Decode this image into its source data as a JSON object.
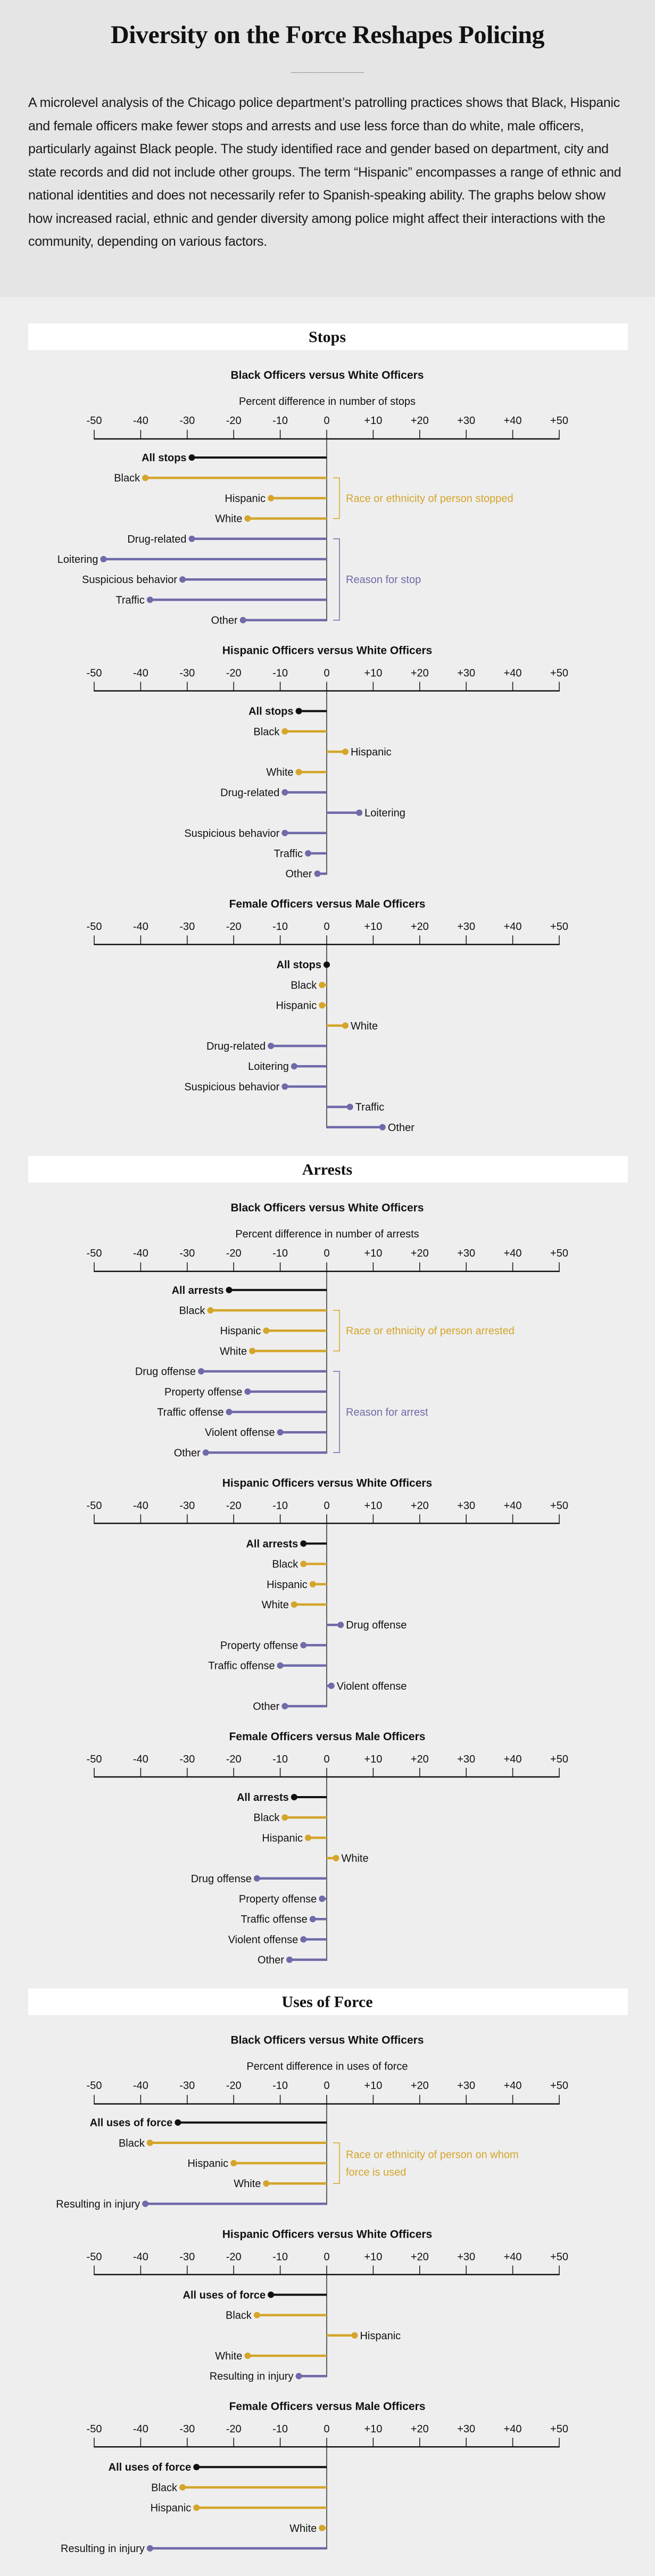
{
  "header": {
    "title": "Diversity on the Force Reshapes Policing",
    "intro": "A microlevel analysis of the Chicago police department’s patrolling practices shows that Black, Hispanic and female officers make fewer stops and arrests and use less force than do white, male officers, particularly against Black people. The study identified race and gender based on department, city and state records and did not include other groups. The term “Hispanic” encompasses a range of ethnic and national identities and does not necessarily refer to Spanish-speaking ability. The graphs below show how increased racial, ethnic and gender diversity among police might affect their interactions with the community, depending on various factors."
  },
  "sections": [
    "Stops",
    "Arrests",
    "Uses of Force"
  ],
  "colors": {
    "total": "#111111",
    "race": "#d4a52a",
    "reason": "#6f6aa8",
    "header_bg": "#e5e5e5",
    "body_bg": "#eeeeee"
  },
  "chart_data": [
    {
      "type": "bar",
      "orientation": "horizontal",
      "style": "lollipop",
      "section": "Stops",
      "title": "Black Officers versus White Officers",
      "xlabel": "Percent difference in number of stops",
      "xlim": [
        -50,
        50
      ],
      "tick_labels": [
        "-50",
        "-40",
        "-30",
        "-20",
        "-10",
        "0",
        "+10",
        "+20",
        "+30",
        "+40",
        "+50"
      ],
      "categories": [
        "All stops",
        "Black",
        "Hispanic",
        "White",
        "Drug-related",
        "Loitering",
        "Suspicious behavior",
        "Traffic",
        "Other"
      ],
      "groups": [
        "total",
        "race",
        "race",
        "race",
        "reason",
        "reason",
        "reason",
        "reason",
        "reason"
      ],
      "values": [
        -29,
        -39,
        -12,
        -17,
        -29,
        -48,
        -31,
        -38,
        -18
      ],
      "brackets": [
        {
          "group": "race",
          "lines": [
            "Race or ethnicity of person stopped"
          ]
        },
        {
          "group": "reason",
          "lines": [
            "Reason for stop"
          ]
        }
      ]
    },
    {
      "type": "bar",
      "orientation": "horizontal",
      "style": "lollipop",
      "section": "Stops",
      "title": "Hispanic Officers versus White Officers",
      "xlim": [
        -50,
        50
      ],
      "tick_labels": [
        "-50",
        "-40",
        "-30",
        "-20",
        "-10",
        "0",
        "+10",
        "+20",
        "+30",
        "+40",
        "+50"
      ],
      "categories": [
        "All stops",
        "Black",
        "Hispanic",
        "White",
        "Drug-related",
        "Loitering",
        "Suspicious behavior",
        "Traffic",
        "Other"
      ],
      "groups": [
        "total",
        "race",
        "race",
        "race",
        "reason",
        "reason",
        "reason",
        "reason",
        "reason"
      ],
      "values": [
        -6,
        -9,
        4,
        -6,
        -9,
        7,
        -9,
        -4,
        -2
      ]
    },
    {
      "type": "bar",
      "orientation": "horizontal",
      "style": "lollipop",
      "section": "Stops",
      "title": "Female Officers versus Male Officers",
      "xlim": [
        -50,
        50
      ],
      "tick_labels": [
        "-50",
        "-40",
        "-30",
        "-20",
        "-10",
        "0",
        "+10",
        "+20",
        "+30",
        "+40",
        "+50"
      ],
      "categories": [
        "All stops",
        "Black",
        "Hispanic",
        "White",
        "Drug-related",
        "Loitering",
        "Suspicious behavior",
        "Traffic",
        "Other"
      ],
      "groups": [
        "total",
        "race",
        "race",
        "race",
        "reason",
        "reason",
        "reason",
        "reason",
        "reason"
      ],
      "values": [
        0,
        -1,
        -1,
        4,
        -12,
        -7,
        -9,
        5,
        12
      ]
    },
    {
      "type": "bar",
      "orientation": "horizontal",
      "style": "lollipop",
      "section": "Arrests",
      "title": "Black Officers versus White Officers",
      "xlabel": "Percent difference in number of arrests",
      "xlim": [
        -50,
        50
      ],
      "tick_labels": [
        "-50",
        "-40",
        "-30",
        "-20",
        "-10",
        "0",
        "+10",
        "+20",
        "+30",
        "+40",
        "+50"
      ],
      "categories": [
        "All arrests",
        "Black",
        "Hispanic",
        "White",
        "Drug offense",
        "Property offense",
        "Traffic offense",
        "Violent offense",
        "Other"
      ],
      "groups": [
        "total",
        "race",
        "race",
        "race",
        "reason",
        "reason",
        "reason",
        "reason",
        "reason"
      ],
      "values": [
        -21,
        -25,
        -13,
        -16,
        -27,
        -17,
        -21,
        -10,
        -26
      ],
      "brackets": [
        {
          "group": "race",
          "lines": [
            "Race or ethnicity of person arrested"
          ]
        },
        {
          "group": "reason",
          "lines": [
            "Reason for arrest"
          ]
        }
      ]
    },
    {
      "type": "bar",
      "orientation": "horizontal",
      "style": "lollipop",
      "section": "Arrests",
      "title": "Hispanic Officers versus White Officers",
      "xlim": [
        -50,
        50
      ],
      "tick_labels": [
        "-50",
        "-40",
        "-30",
        "-20",
        "-10",
        "0",
        "+10",
        "+20",
        "+30",
        "+40",
        "+50"
      ],
      "categories": [
        "All arrests",
        "Black",
        "Hispanic",
        "White",
        "Drug offense",
        "Property offense",
        "Traffic offense",
        "Violent offense",
        "Other"
      ],
      "groups": [
        "total",
        "race",
        "race",
        "race",
        "reason",
        "reason",
        "reason",
        "reason",
        "reason"
      ],
      "values": [
        -5,
        -5,
        -3,
        -7,
        3,
        -5,
        -10,
        1,
        -9
      ]
    },
    {
      "type": "bar",
      "orientation": "horizontal",
      "style": "lollipop",
      "section": "Arrests",
      "title": "Female Officers versus Male Officers",
      "xlim": [
        -50,
        50
      ],
      "tick_labels": [
        "-50",
        "-40",
        "-30",
        "-20",
        "-10",
        "0",
        "+10",
        "+20",
        "+30",
        "+40",
        "+50"
      ],
      "categories": [
        "All arrests",
        "Black",
        "Hispanic",
        "White",
        "Drug offense",
        "Property offense",
        "Traffic offense",
        "Violent offense",
        "Other"
      ],
      "groups": [
        "total",
        "race",
        "race",
        "race",
        "reason",
        "reason",
        "reason",
        "reason",
        "reason"
      ],
      "values": [
        -7,
        -9,
        -4,
        2,
        -15,
        -1,
        -3,
        -5,
        -8
      ]
    },
    {
      "type": "bar",
      "orientation": "horizontal",
      "style": "lollipop",
      "section": "Uses of Force",
      "title": "Black Officers versus White Officers",
      "xlabel": "Percent difference in uses of force",
      "xlim": [
        -50,
        50
      ],
      "tick_labels": [
        "-50",
        "-40",
        "-30",
        "-20",
        "-10",
        "0",
        "+10",
        "+20",
        "+30",
        "+40",
        "+50"
      ],
      "categories": [
        "All uses of force",
        "Black",
        "Hispanic",
        "White",
        "Resulting in injury"
      ],
      "groups": [
        "total",
        "race",
        "race",
        "race",
        "reason"
      ],
      "values": [
        -32,
        -38,
        -20,
        -13,
        -39
      ],
      "brackets": [
        {
          "group": "race",
          "lines": [
            "Race or ethnicity of person on whom",
            "force is used"
          ]
        }
      ]
    },
    {
      "type": "bar",
      "orientation": "horizontal",
      "style": "lollipop",
      "section": "Uses of Force",
      "title": "Hispanic Officers versus White Officers",
      "xlim": [
        -50,
        50
      ],
      "tick_labels": [
        "-50",
        "-40",
        "-30",
        "-20",
        "-10",
        "0",
        "+10",
        "+20",
        "+30",
        "+40",
        "+50"
      ],
      "categories": [
        "All uses of force",
        "Black",
        "Hispanic",
        "White",
        "Resulting in injury"
      ],
      "groups": [
        "total",
        "race",
        "race",
        "race",
        "reason"
      ],
      "values": [
        -12,
        -15,
        6,
        -17,
        -6
      ]
    },
    {
      "type": "bar",
      "orientation": "horizontal",
      "style": "lollipop",
      "section": "Uses of Force",
      "title": "Female Officers versus Male Officers",
      "xlim": [
        -50,
        50
      ],
      "tick_labels": [
        "-50",
        "-40",
        "-30",
        "-20",
        "-10",
        "0",
        "+10",
        "+20",
        "+30",
        "+40",
        "+50"
      ],
      "categories": [
        "All uses of force",
        "Black",
        "Hispanic",
        "White",
        "Resulting in injury"
      ],
      "groups": [
        "total",
        "race",
        "race",
        "race",
        "reason"
      ],
      "values": [
        -28,
        -31,
        -28,
        -1,
        -38
      ]
    }
  ]
}
